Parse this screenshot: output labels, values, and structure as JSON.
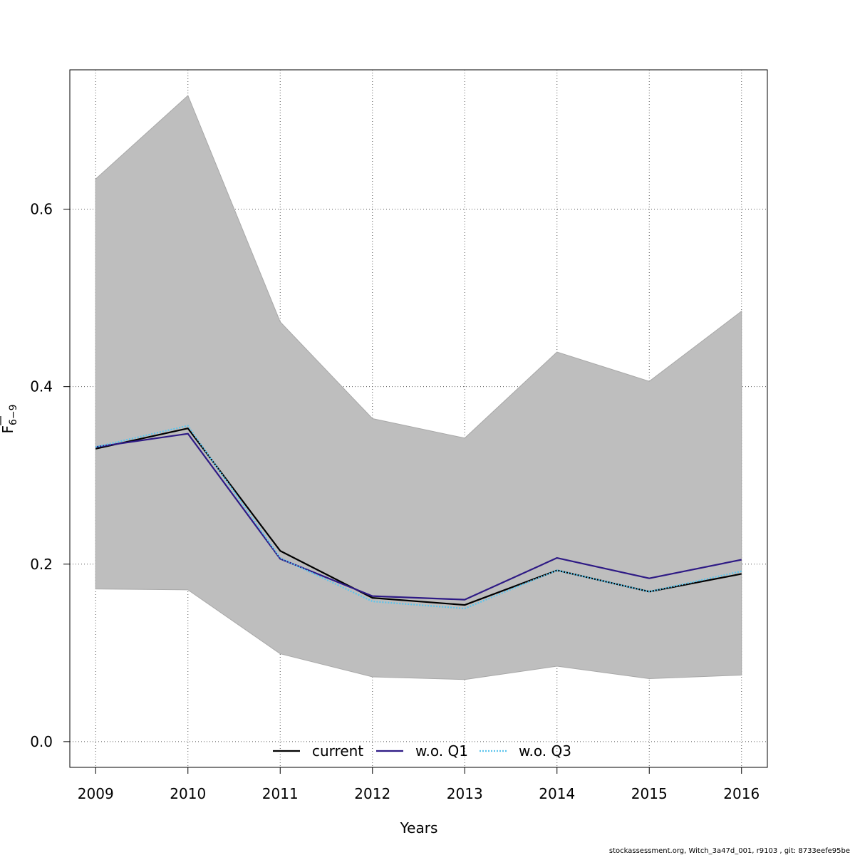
{
  "chart_data": {
    "type": "line",
    "title": "",
    "xlabel": "Years",
    "ylabel_main": "F",
    "ylabel_sub": "6−9",
    "x": [
      2009,
      2010,
      2011,
      2012,
      2013,
      2014,
      2015,
      2016
    ],
    "x_tick_labels": [
      "2009",
      "2010",
      "2011",
      "2012",
      "2013",
      "2014",
      "2015",
      "2016"
    ],
    "y_ticks": [
      0.0,
      0.2,
      0.4,
      0.6
    ],
    "y_tick_labels": [
      "0.0",
      "0.2",
      "0.4",
      "0.6"
    ],
    "xlim": [
      2008.72,
      2016.28
    ],
    "ylim": [
      -0.029,
      0.757
    ],
    "grid": true,
    "legend_position": "bottom",
    "confidence_band": {
      "color": "#bebebe",
      "lower": [
        0.172,
        0.171,
        0.099,
        0.073,
        0.07,
        0.085,
        0.071,
        0.075
      ],
      "upper": [
        0.634,
        0.728,
        0.473,
        0.364,
        0.342,
        0.439,
        0.406,
        0.485
      ]
    },
    "series": [
      {
        "name": "current",
        "color": "#000000",
        "dash": "none",
        "values": [
          0.33,
          0.353,
          0.215,
          0.162,
          0.154,
          0.193,
          0.169,
          0.189
        ]
      },
      {
        "name": "w.o. Q1",
        "color": "#2e1a85",
        "dash": "none",
        "values": [
          0.332,
          0.347,
          0.206,
          0.164,
          0.16,
          0.207,
          0.184,
          0.205
        ]
      },
      {
        "name": "w.o. Q3",
        "color": "#5bc4ec",
        "dash": "2,2",
        "values": [
          0.332,
          0.356,
          0.207,
          0.158,
          0.15,
          0.193,
          0.169,
          0.192
        ]
      }
    ]
  },
  "footnote": "stockassessment.org, Witch_3a47d_001, r9103 , git: 8733eefe95be"
}
